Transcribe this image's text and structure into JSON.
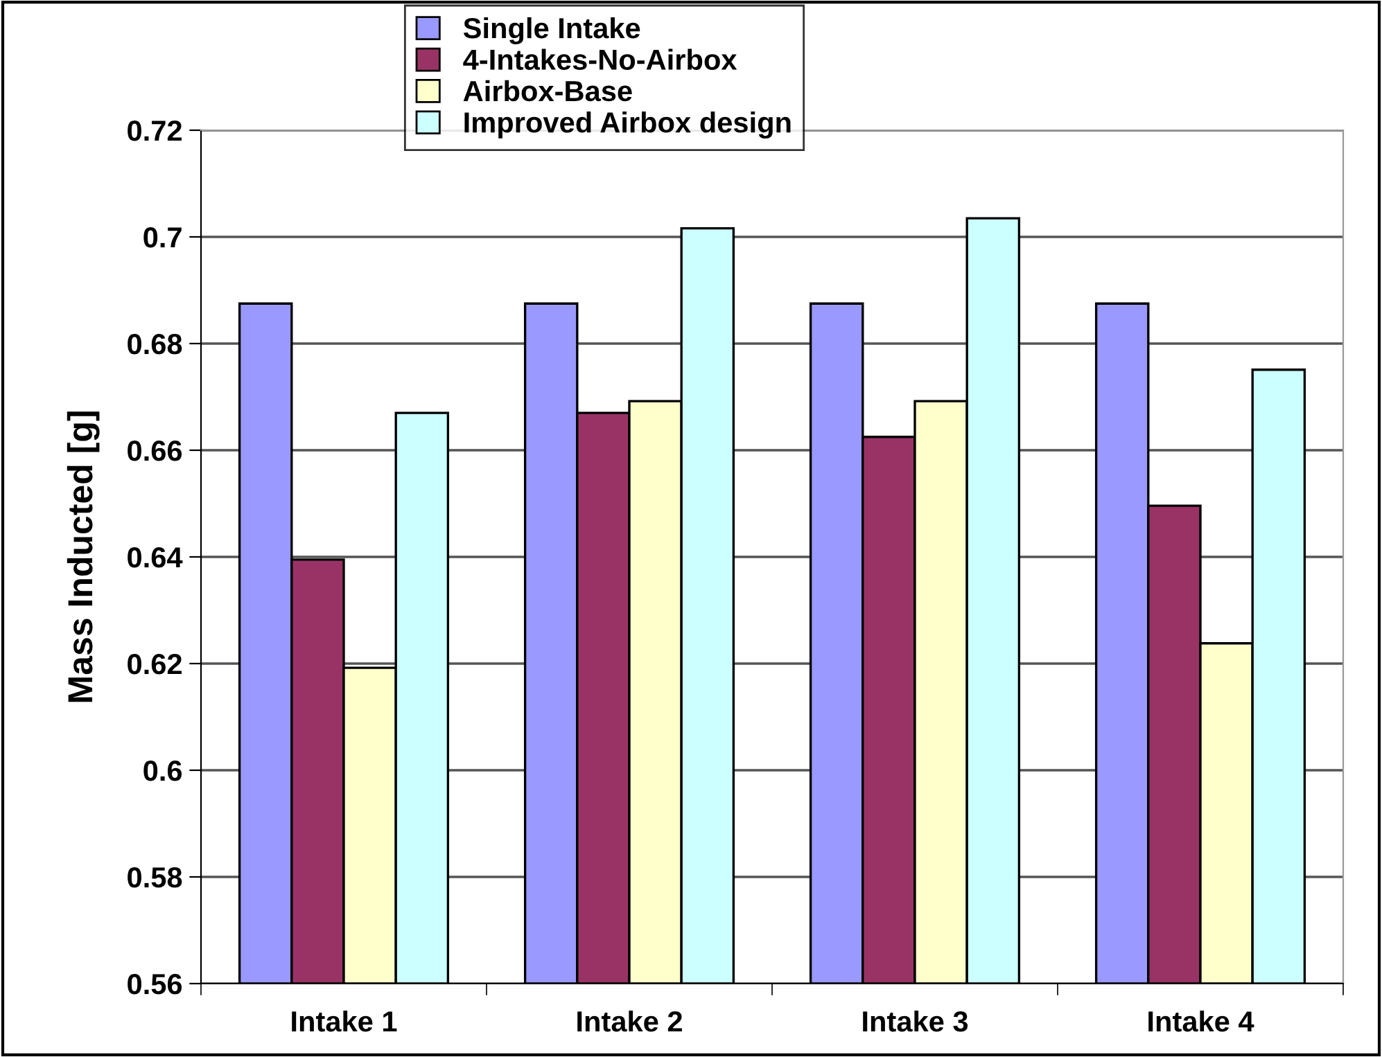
{
  "chart_data": {
    "type": "bar",
    "ylabel": "Mass Inducted [g]",
    "categories": [
      "Intake 1",
      "Intake 2",
      "Intake 3",
      "Intake 4"
    ],
    "series": [
      {
        "name": "Single Intake",
        "color": "#9999ff",
        "values": [
          0.6875,
          0.6875,
          0.6875,
          0.6875
        ]
      },
      {
        "name": "4-Intakes-No-Airbox",
        "color": "#993366",
        "values": [
          0.6395,
          0.667,
          0.6625,
          0.6496
        ]
      },
      {
        "name": "Airbox-Base",
        "color": "#ffffcc",
        "values": [
          0.6192,
          0.6692,
          0.6692,
          0.6238
        ]
      },
      {
        "name": "Improved Airbox design",
        "color": "#ccffff",
        "values": [
          0.667,
          0.7016,
          0.7035,
          0.6751
        ]
      }
    ],
    "ylim": [
      0.56,
      0.72
    ],
    "yticks": [
      0.56,
      0.58,
      0.6,
      0.62,
      0.64,
      0.66,
      0.68,
      0.7,
      0.72
    ],
    "grid": "y",
    "legend": "top"
  }
}
